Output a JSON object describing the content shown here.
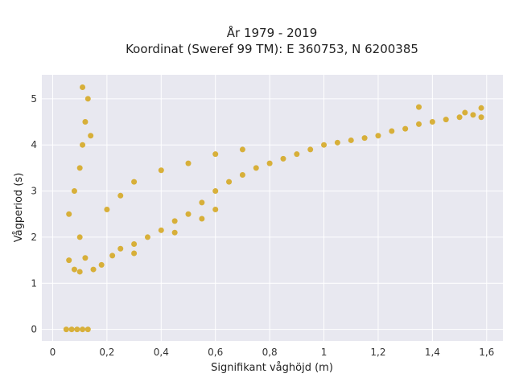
{
  "chart_data": {
    "type": "scatter",
    "title": "År 1979 - 2019",
    "subtitle": "Koordinat (Sweref 99 TM): E 360753, N 6200385",
    "xlabel": "Signifikant våghöjd (m)",
    "ylabel": "Vågperiod (s)",
    "xlim": [
      -0.04,
      1.66
    ],
    "ylim": [
      -0.25,
      5.52
    ],
    "x_ticks": [
      0,
      0.2,
      0.4,
      0.6,
      0.8,
      1,
      1.2,
      1.4,
      1.6
    ],
    "x_tick_labels": [
      "0",
      "0,2",
      "0,4",
      "0,6",
      "0,8",
      "1",
      "1,2",
      "1,4",
      "1,6"
    ],
    "y_ticks": [
      0,
      1,
      2,
      3,
      4,
      5
    ],
    "y_tick_labels": [
      "0",
      "1",
      "2",
      "3",
      "4",
      "5"
    ],
    "grid": true,
    "legend": "none",
    "marker_color": "#D4A419",
    "plot_background": "#E8E8F0",
    "series": [
      {
        "values": [
          {
            "x": 0.06,
            "y": 1.5
          },
          {
            "x": 0.08,
            "y": 1.3
          },
          {
            "x": 0.1,
            "y": 1.25
          },
          {
            "x": 0.12,
            "y": 1.55
          },
          {
            "x": 0.15,
            "y": 1.3
          },
          {
            "x": 0.18,
            "y": 1.4
          },
          {
            "x": 0.22,
            "y": 1.6
          },
          {
            "x": 0.25,
            "y": 1.75
          },
          {
            "x": 0.3,
            "y": 1.85
          },
          {
            "x": 0.35,
            "y": 2.0
          },
          {
            "x": 0.4,
            "y": 2.15
          },
          {
            "x": 0.45,
            "y": 2.35
          },
          {
            "x": 0.5,
            "y": 2.5
          },
          {
            "x": 0.55,
            "y": 2.75
          },
          {
            "x": 0.6,
            "y": 3.0
          },
          {
            "x": 0.65,
            "y": 3.2
          },
          {
            "x": 0.7,
            "y": 3.35
          },
          {
            "x": 0.75,
            "y": 3.5
          },
          {
            "x": 0.8,
            "y": 3.6
          },
          {
            "x": 0.85,
            "y": 3.7
          },
          {
            "x": 0.9,
            "y": 3.8
          },
          {
            "x": 0.95,
            "y": 3.9
          },
          {
            "x": 1.0,
            "y": 4.0
          },
          {
            "x": 1.05,
            "y": 4.05
          },
          {
            "x": 1.1,
            "y": 4.1
          },
          {
            "x": 1.15,
            "y": 4.15
          },
          {
            "x": 1.2,
            "y": 4.2
          },
          {
            "x": 1.25,
            "y": 4.3
          },
          {
            "x": 1.3,
            "y": 4.35
          },
          {
            "x": 1.35,
            "y": 4.45
          },
          {
            "x": 1.4,
            "y": 4.5
          },
          {
            "x": 1.45,
            "y": 4.55
          },
          {
            "x": 1.5,
            "y": 4.6
          },
          {
            "x": 1.55,
            "y": 4.65
          },
          {
            "x": 1.58,
            "y": 4.6
          },
          {
            "x": 0.06,
            "y": 2.5
          },
          {
            "x": 0.08,
            "y": 3.0
          },
          {
            "x": 0.1,
            "y": 3.5
          },
          {
            "x": 0.11,
            "y": 4.0
          },
          {
            "x": 0.12,
            "y": 4.5
          },
          {
            "x": 0.13,
            "y": 5.0
          },
          {
            "x": 0.11,
            "y": 5.25
          },
          {
            "x": 0.14,
            "y": 4.2
          },
          {
            "x": 0.1,
            "y": 2.0
          },
          {
            "x": 0.2,
            "y": 2.6
          },
          {
            "x": 0.25,
            "y": 2.9
          },
          {
            "x": 0.3,
            "y": 3.2
          },
          {
            "x": 0.4,
            "y": 3.45
          },
          {
            "x": 0.5,
            "y": 3.6
          },
          {
            "x": 0.6,
            "y": 3.8
          },
          {
            "x": 0.7,
            "y": 3.9
          },
          {
            "x": 0.3,
            "y": 1.65
          },
          {
            "x": 0.45,
            "y": 2.1
          },
          {
            "x": 0.55,
            "y": 2.4
          },
          {
            "x": 0.6,
            "y": 2.6
          },
          {
            "x": 0.05,
            "y": 0.0
          },
          {
            "x": 0.07,
            "y": 0.0
          },
          {
            "x": 0.09,
            "y": 0.0
          },
          {
            "x": 0.11,
            "y": 0.0
          },
          {
            "x": 0.13,
            "y": 0.0
          },
          {
            "x": 1.35,
            "y": 4.82
          },
          {
            "x": 1.58,
            "y": 4.8
          },
          {
            "x": 1.52,
            "y": 4.7
          }
        ]
      }
    ]
  }
}
